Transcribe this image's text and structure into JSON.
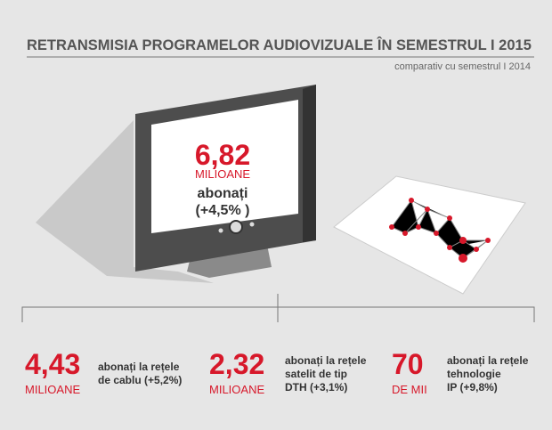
{
  "header": {
    "title": "RETRANSMISIA PROGRAMELOR AUDIOVIZUALE ÎN SEMESTRUL I 2015",
    "subtitle": "comparativ cu semestrul I 2014"
  },
  "main": {
    "number": "6,82",
    "unit": "MILIOANE",
    "lines": [
      "abonați",
      "(+4,5% )"
    ]
  },
  "stats": [
    {
      "number": "4,43",
      "unit": "MILIOANE",
      "lines": [
        "abonați la rețele",
        "de cablu (+5,2%)"
      ]
    },
    {
      "number": "2,32",
      "unit": "MILIOANE",
      "lines": [
        "abonați la rețele",
        "satelit de tip",
        "DTH (+3,1%)"
      ]
    },
    {
      "number": "70",
      "unit": "DE MII",
      "lines": [
        "abonați la rețele",
        "tehnologie",
        "IP (+9,8%)"
      ]
    }
  ]
}
